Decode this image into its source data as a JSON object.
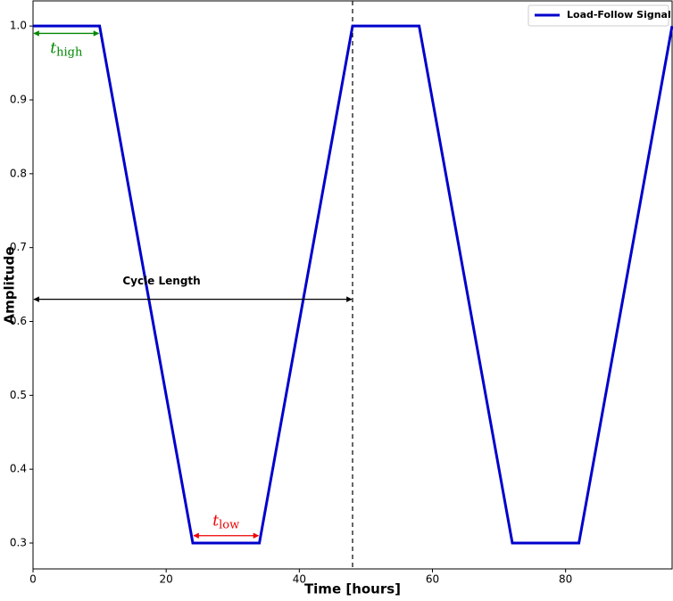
{
  "chart_data": {
    "type": "line",
    "xlabel": "Time [hours]",
    "ylabel": "Amplitude",
    "x": [
      0,
      10,
      24,
      34,
      48,
      58,
      72,
      82,
      96
    ],
    "series": [
      {
        "name": "Load-Follow Signal",
        "color": "#0000cc",
        "values": [
          1.0,
          1.0,
          0.3,
          0.3,
          1.0,
          1.0,
          0.3,
          0.3,
          1.0
        ]
      }
    ],
    "xlim": [
      0,
      96
    ],
    "ylim": [
      0.265,
      1.034
    ],
    "xticks": [
      0,
      20,
      40,
      60,
      80
    ],
    "yticks": [
      {
        "value": 0.3,
        "label": "0.3"
      },
      {
        "value": 0.4,
        "label": "0.4"
      },
      {
        "value": 0.5,
        "label": "0.5"
      },
      {
        "value": 0.6,
        "label": "0.6"
      },
      {
        "value": 0.7,
        "label": "0.7"
      },
      {
        "value": 0.8,
        "label": "0.8"
      },
      {
        "value": 0.9,
        "label": "0.9"
      },
      {
        "value": 1.0,
        "label": "1.0"
      }
    ],
    "legend": "upper right",
    "vline": 48,
    "annotations": [
      {
        "text": "Cycle Length",
        "x0": 0,
        "x1": 48,
        "y": 0.63,
        "color": "#000000",
        "side": "above"
      },
      {
        "text": "t",
        "sub": "high",
        "x0": 0,
        "x1": 10,
        "y": 0.99,
        "color": "#008800",
        "side": "below"
      },
      {
        "text": "t",
        "sub": "low",
        "x0": 24,
        "x1": 34,
        "y": 0.31,
        "color": "#ee0000",
        "side": "above"
      }
    ]
  }
}
